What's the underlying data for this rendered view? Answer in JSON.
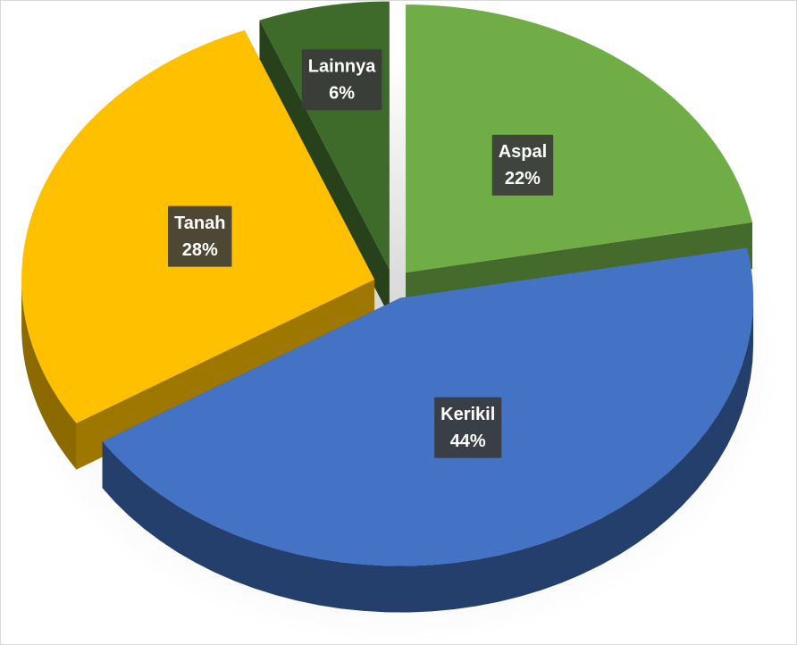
{
  "chart_data": {
    "type": "pie",
    "categories": [
      "Aspal",
      "Kerikil",
      "Tanah",
      "Lainnya"
    ],
    "values": [
      22,
      44,
      28,
      6
    ],
    "value_labels": [
      "22%",
      "44%",
      "28%",
      "6%"
    ],
    "colors": [
      "#70ad47",
      "#4472c4",
      "#ffc000",
      "#3f6b2a"
    ]
  }
}
